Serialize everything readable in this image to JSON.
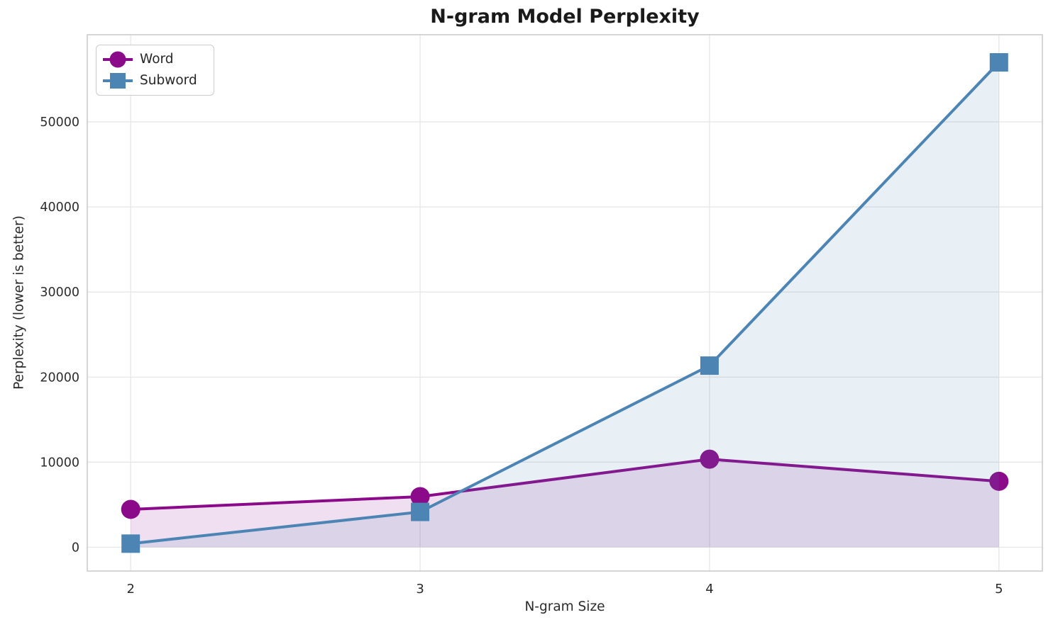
{
  "chart_data": {
    "type": "line",
    "title": "N-gram Model Perplexity",
    "xlabel": "N-gram Size",
    "ylabel": "Perplexity (lower is better)",
    "x": [
      2,
      3,
      4,
      5
    ],
    "x_tick_labels": [
      "2",
      "3",
      "4",
      "5"
    ],
    "y_ticks": [
      0,
      10000,
      20000,
      30000,
      40000,
      50000
    ],
    "y_tick_labels": [
      "0",
      "10000",
      "20000",
      "30000",
      "40000",
      "50000"
    ],
    "xlim": [
      1.85,
      5.15
    ],
    "ylim": [
      -2800,
      60250
    ],
    "grid": true,
    "legend_position": "upper-left",
    "series": [
      {
        "name": "Word",
        "marker": "circle",
        "color": "#8a0a8a",
        "line_width": 4,
        "fill_to_zero": true,
        "fill_opacity": 0.13,
        "values": [
          4450,
          5950,
          10350,
          7750
        ]
      },
      {
        "name": "Subword",
        "marker": "square",
        "color": "#4c84b4",
        "line_width": 4,
        "fill_to_zero": true,
        "fill_opacity": 0.13,
        "values": [
          420,
          4150,
          21350,
          57000
        ]
      }
    ],
    "style": {
      "background": "#ffffff",
      "grid_color": "#e7e7e7",
      "spine_color": "#cccccc",
      "tick_text_color": "#2b2b2b",
      "title_color": "#1a1a1a"
    }
  }
}
